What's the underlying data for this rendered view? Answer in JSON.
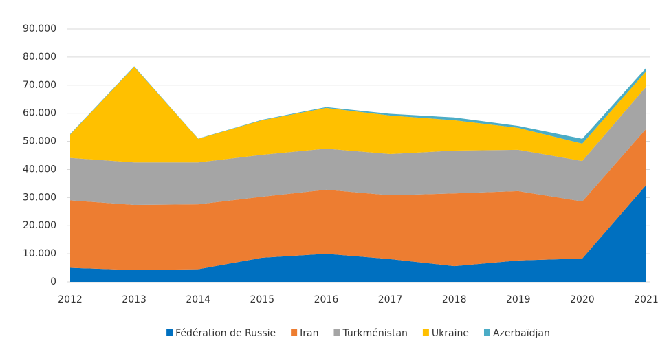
{
  "chart_data": {
    "type": "stacked_area",
    "categories": [
      "2012",
      "2013",
      "2014",
      "2015",
      "2016",
      "2017",
      "2018",
      "2019",
      "2020",
      "2021"
    ],
    "series": [
      {
        "name": "Fédération de Russie",
        "color": "#0070c0",
        "values": [
          5000,
          4200,
          4500,
          8600,
          10000,
          8100,
          5600,
          7600,
          8300,
          34500
        ]
      },
      {
        "name": "Iran",
        "color": "#ed7d31",
        "values": [
          24000,
          23200,
          23100,
          21700,
          22800,
          22700,
          25900,
          24700,
          20300,
          20000
        ]
      },
      {
        "name": "Turkménistan",
        "color": "#a5a5a5",
        "values": [
          15100,
          15100,
          14900,
          14900,
          14600,
          14700,
          15200,
          14700,
          14400,
          15000
        ]
      },
      {
        "name": "Ukraine",
        "color": "#ffc000",
        "values": [
          8300,
          34000,
          8400,
          12300,
          14500,
          13700,
          10800,
          7800,
          6200,
          5500
        ]
      },
      {
        "name": "Azerbaïdjan",
        "color": "#4bacc6",
        "values": [
          200,
          200,
          100,
          200,
          300,
          600,
          1000,
          700,
          1700,
          1200
        ]
      }
    ],
    "ylim": [
      0,
      90000
    ],
    "yticks": [
      0,
      {
        "value": 10000,
        "label": "10.000"
      },
      {
        "value": 20000,
        "label": "20.000"
      },
      {
        "value": 30000,
        "label": "30.000"
      },
      {
        "value": 40000,
        "label": "40.000"
      },
      {
        "value": 50000,
        "label": "50.000"
      },
      {
        "value": 60000,
        "label": "60.000"
      },
      {
        "value": 70000,
        "label": "70.000"
      },
      {
        "value": 80000,
        "label": "80.000"
      },
      {
        "value": 90000,
        "label": "90.000"
      }
    ],
    "grid": true,
    "legend": "bottom"
  }
}
